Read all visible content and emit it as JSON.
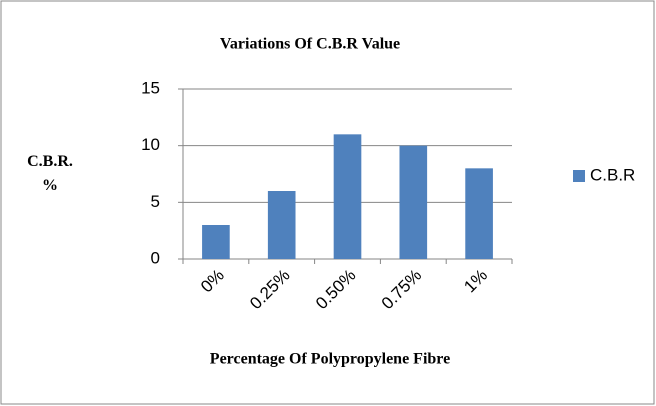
{
  "chart_data": {
    "type": "bar",
    "title": "Variations Of C.B.R Value",
    "x_label": "Percentage Of Polypropylene Fibre",
    "y_label": "C.B.R. %",
    "categories": [
      "0%",
      "0.25%",
      "0.50%",
      "0.75%",
      "1%"
    ],
    "series": [
      {
        "name": "C.B.R",
        "color": "#4f81bd",
        "values": [
          3,
          6,
          11,
          10,
          8
        ]
      }
    ],
    "ylim": [
      0,
      15
    ],
    "yticks": [
      0,
      5,
      10,
      15
    ],
    "grid": true,
    "legend": "right"
  }
}
